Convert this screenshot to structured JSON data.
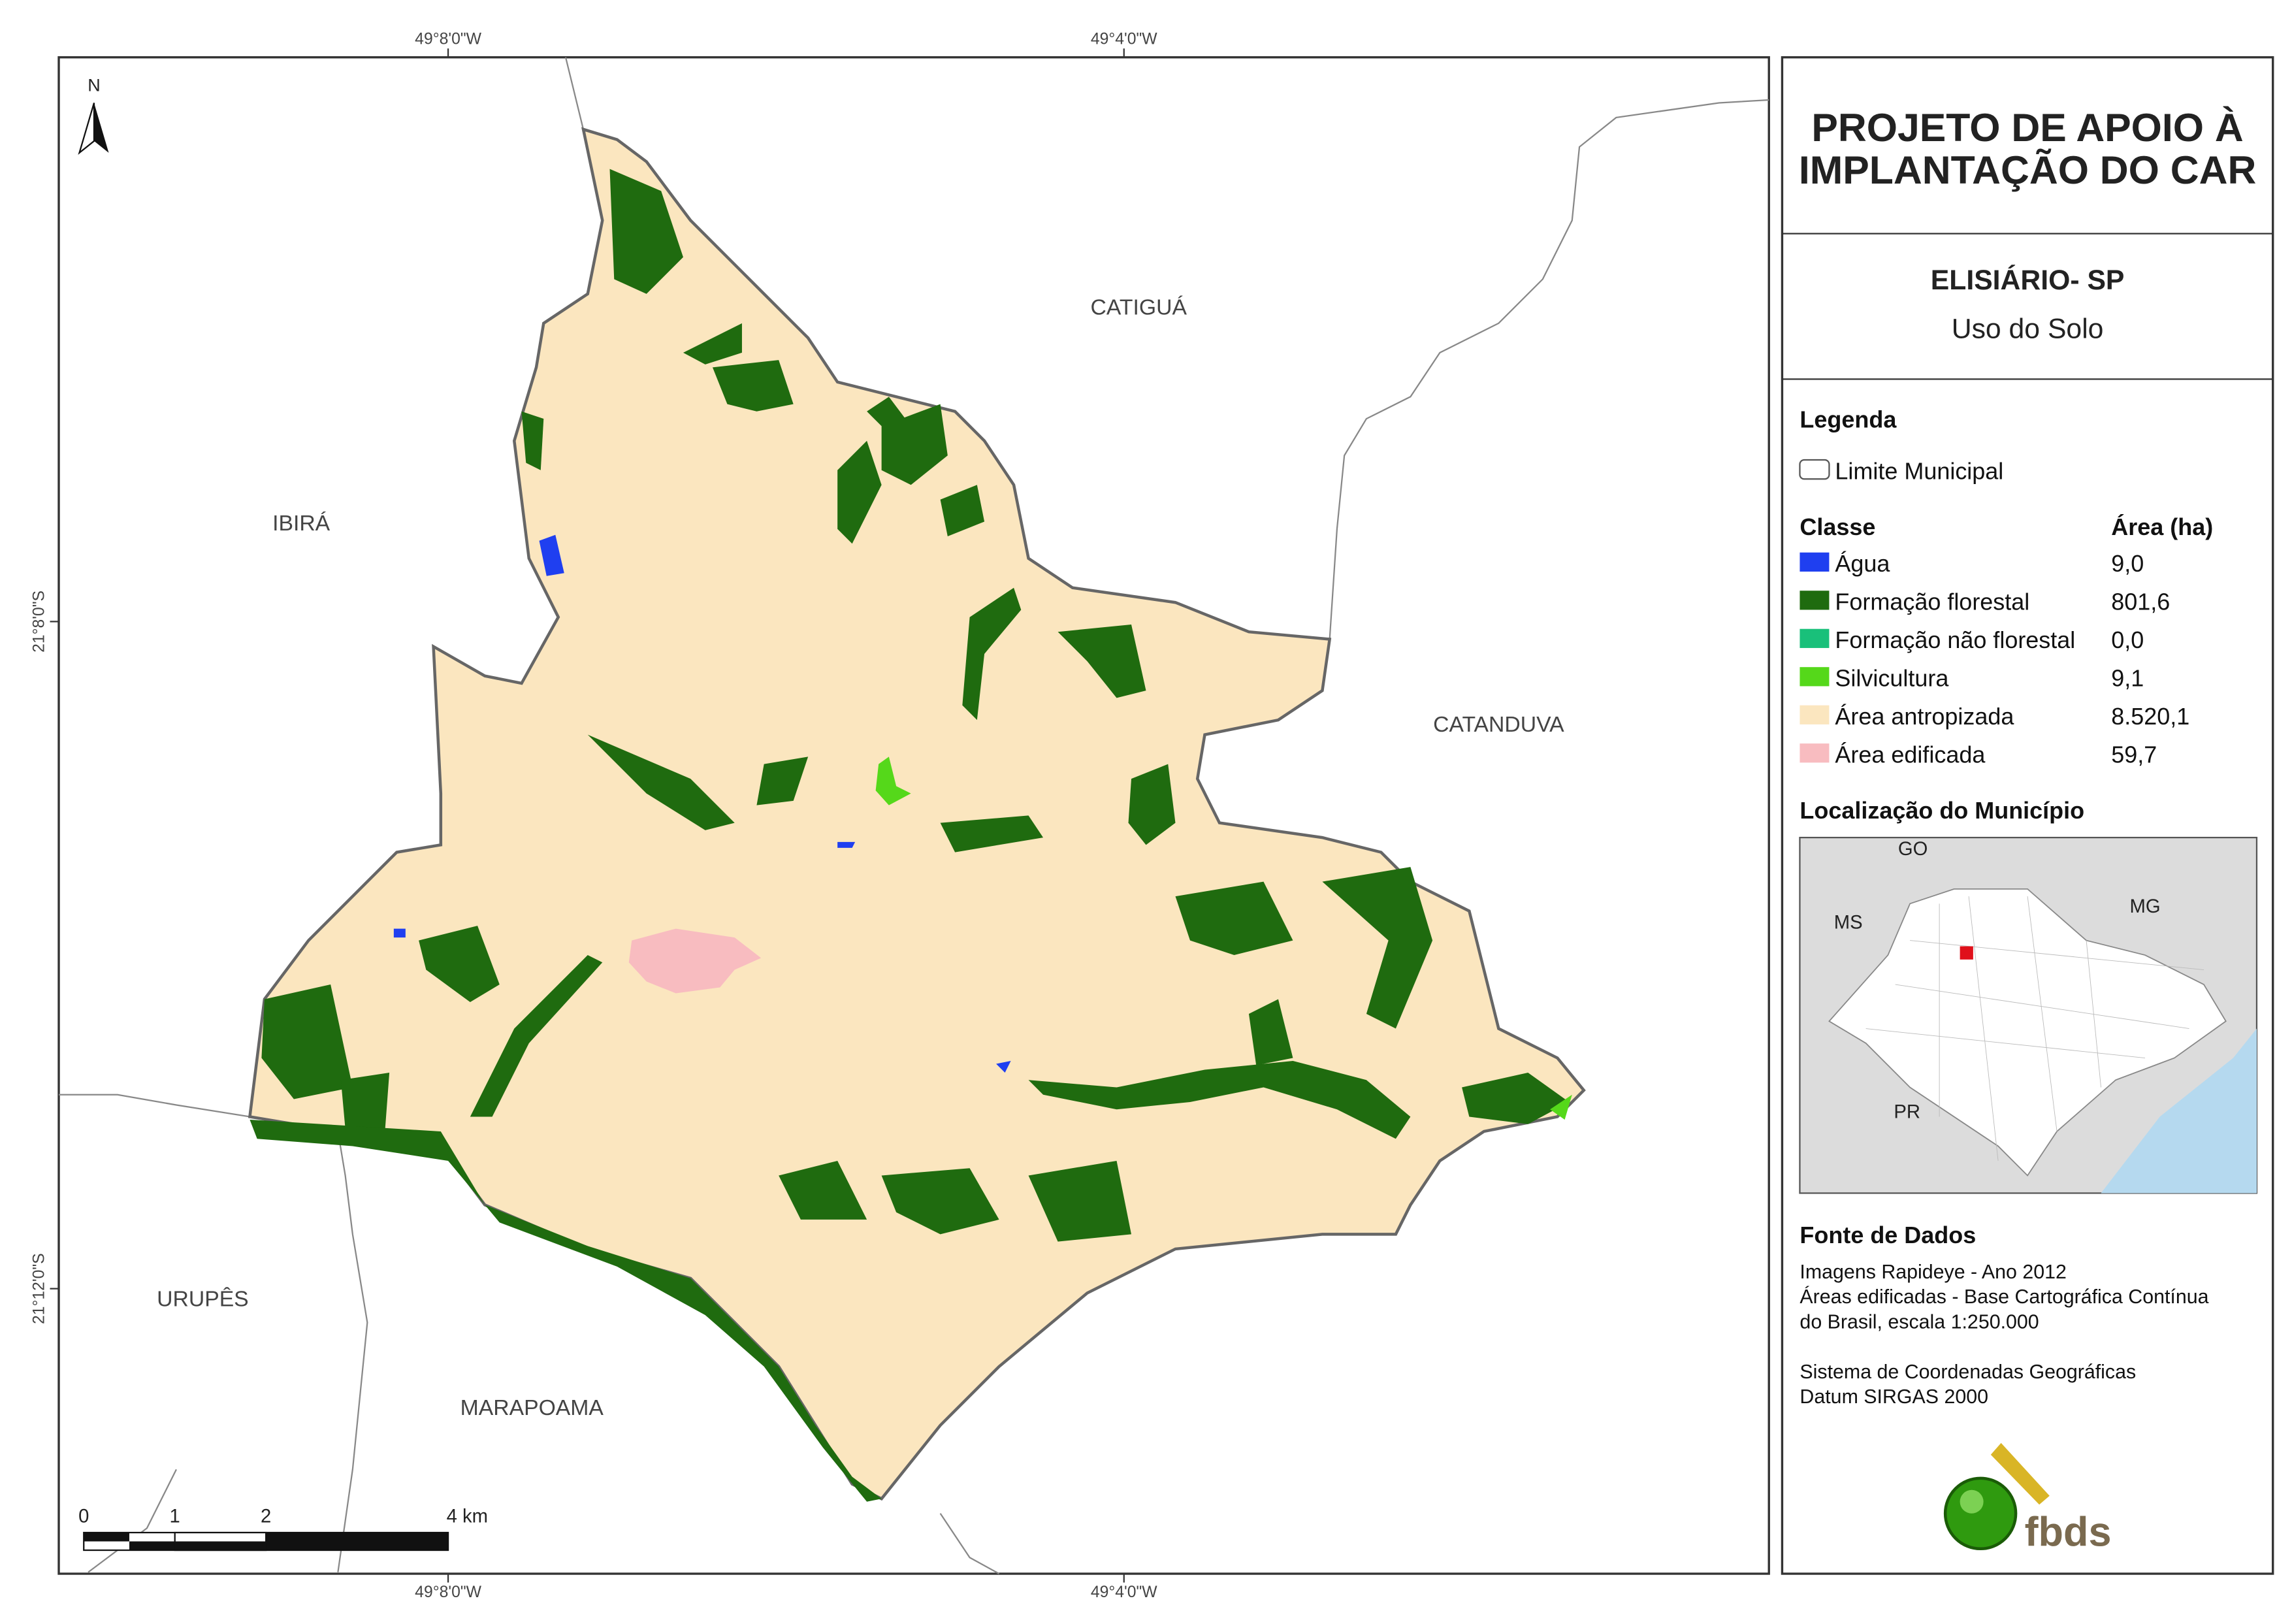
{
  "header": {
    "title": [
      "PROJETO DE APOIO À",
      "IMPLANTAÇÃO DO CAR"
    ],
    "municipality": "ELISIÁRIO- SP",
    "subtitle": "Uso do Solo"
  },
  "legend": {
    "title": "Legenda",
    "boundary": "Limite Municipal",
    "class_header": "Classe",
    "area_header": "Área (ha)",
    "classes": [
      {
        "name": "Água",
        "area": "9,0",
        "color": "#1f3ff0"
      },
      {
        "name": "Formação florestal",
        "area": "801,6",
        "color": "#1f6b0f"
      },
      {
        "name": "Formação não florestal",
        "area": "0,0",
        "color": "#19c07a"
      },
      {
        "name": "Silvicultura",
        "area": "9,1",
        "color": "#55d81a"
      },
      {
        "name": "Área antropizada",
        "area": "8.520,1",
        "color": "#fbe6bf"
      },
      {
        "name": "Área edificada",
        "area": "59,7",
        "color": "#f8bcc0"
      }
    ]
  },
  "locator": {
    "title": "Localização do Município",
    "labels": [
      "GO",
      "MS",
      "MG",
      "PR"
    ]
  },
  "source": {
    "title": "Fonte de Dados",
    "lines": [
      "Imagens Rapideye - Ano 2012",
      "Áreas edificadas - Base Cartográfica Contínua",
      "do Brasil, escala 1:250.000",
      "Sistema de Coordenadas Geográficas",
      "Datum SIRGAS 2000"
    ]
  },
  "map": {
    "north": "N",
    "coordinates": {
      "top": [
        "49°8'0\"W",
        "49°4'0\"W"
      ],
      "bottom": [
        "49°8'0\"W",
        "49°4'0\"W"
      ],
      "left": [
        "21°8'0\"S",
        "21°12'0\"S"
      ]
    },
    "neighbors": [
      "CATIGUÁ",
      "IBIRÁ",
      "CATANDUVA",
      "URUPÊS",
      "MARAPOAMA"
    ],
    "scale": [
      "0",
      "1",
      "2",
      "4 km"
    ]
  },
  "logo": "fbds"
}
